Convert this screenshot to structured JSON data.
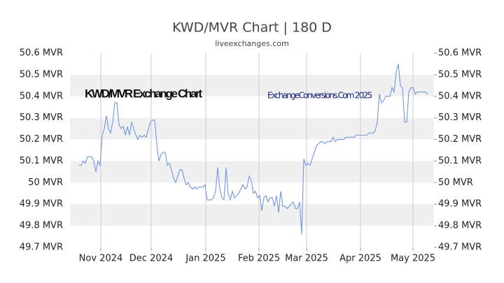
{
  "chart_data": {
    "type": "line",
    "title": "KWD/MVR Chart | 180 D",
    "subtitle": "liveexchanges.com",
    "annotations": [
      "KWD/MVR Exchange Chart",
      "ExchangeConversions.Com 2025"
    ],
    "series": [
      {
        "name": "KWD/MVR",
        "color": "#7396dc",
        "values": [
          50.08,
          50.08,
          50.1,
          50.09,
          50.12,
          50.12,
          50.12,
          50.1,
          50.05,
          50.1,
          50.08,
          50.22,
          50.25,
          50.31,
          50.25,
          50.23,
          50.28,
          50.37,
          50.37,
          50.27,
          50.25,
          50.26,
          50.22,
          50.26,
          50.22,
          50.28,
          50.25,
          50.22,
          50.2,
          50.22,
          50.21,
          50.22,
          50.21,
          50.25,
          50.28,
          50.29,
          50.29,
          50.18,
          50.1,
          50.13,
          50.14,
          50.14,
          50.08,
          50.09,
          50.06,
          50.02,
          50.0,
          50.03,
          50.06,
          50.06,
          50.02,
          49.99,
          50.0,
          49.98,
          49.97,
          49.98,
          49.97,
          49.98,
          49.98,
          49.98,
          49.99,
          49.92,
          49.92,
          49.92,
          49.93,
          49.96,
          50.07,
          49.97,
          49.93,
          49.92,
          50.07,
          49.95,
          49.92,
          49.96,
          49.93,
          49.94,
          49.95,
          49.97,
          49.99,
          49.97,
          49.98,
          50.03,
          50.01,
          49.95,
          49.96,
          49.93,
          49.94,
          49.87,
          49.93,
          49.94,
          49.91,
          49.93,
          49.93,
          49.89,
          49.94,
          49.86,
          49.96,
          49.89,
          49.89,
          49.88,
          49.89,
          49.9,
          49.91,
          49.88,
          49.88,
          49.91,
          49.76,
          50.11,
          50.08,
          50.09,
          50.08,
          50.11,
          50.14,
          50.17,
          50.18,
          50.19,
          50.19,
          50.18,
          50.19,
          50.19,
          50.19,
          50.21,
          50.19,
          50.2,
          50.2,
          50.2,
          50.2,
          50.21,
          50.21,
          50.21,
          50.21,
          50.21,
          50.22,
          50.22,
          50.22,
          50.22,
          50.22,
          50.22,
          50.23,
          50.23,
          50.23,
          50.24,
          50.28,
          50.41,
          50.37,
          50.38,
          50.4,
          50.4,
          50.4,
          50.44,
          50.42,
          50.51,
          50.55,
          50.45,
          50.44,
          50.28,
          50.28,
          50.42,
          50.44,
          50.44,
          50.41,
          50.42,
          50.42,
          50.42,
          50.42,
          50.42,
          50.41
        ]
      }
    ],
    "xlim": [
      -4.33,
      169
    ],
    "xticks": [
      {
        "value": 10.33,
        "label": "Nov 2024"
      },
      {
        "value": 34.33,
        "label": "Dec 2024"
      },
      {
        "value": 60.33,
        "label": "Jan 2025"
      },
      {
        "value": 85.67,
        "label": "Feb 2025"
      },
      {
        "value": 108.33,
        "label": "Mar 2025"
      },
      {
        "value": 134,
        "label": "Apr 2025"
      },
      {
        "value": 159,
        "label": "May 2025"
      }
    ],
    "ylim": [
      49.7,
      50.6
    ],
    "yticks": [
      {
        "value": 49.7,
        "label": "49.7 MVR"
      },
      {
        "value": 49.8,
        "label": "49.8 MVR"
      },
      {
        "value": 49.9,
        "label": "49.9 MVR"
      },
      {
        "value": 50,
        "label": "50 MVR"
      },
      {
        "value": 50.1,
        "label": "50.1 MVR"
      },
      {
        "value": 50.2,
        "label": "50.2 MVR"
      },
      {
        "value": 50.3,
        "label": "50.3 MVR"
      },
      {
        "value": 50.4,
        "label": "50.4 MVR"
      },
      {
        "value": 50.5,
        "label": "50.5 MVR"
      },
      {
        "value": 50.6,
        "label": "50.6 MVR"
      }
    ],
    "grid": "bands"
  }
}
